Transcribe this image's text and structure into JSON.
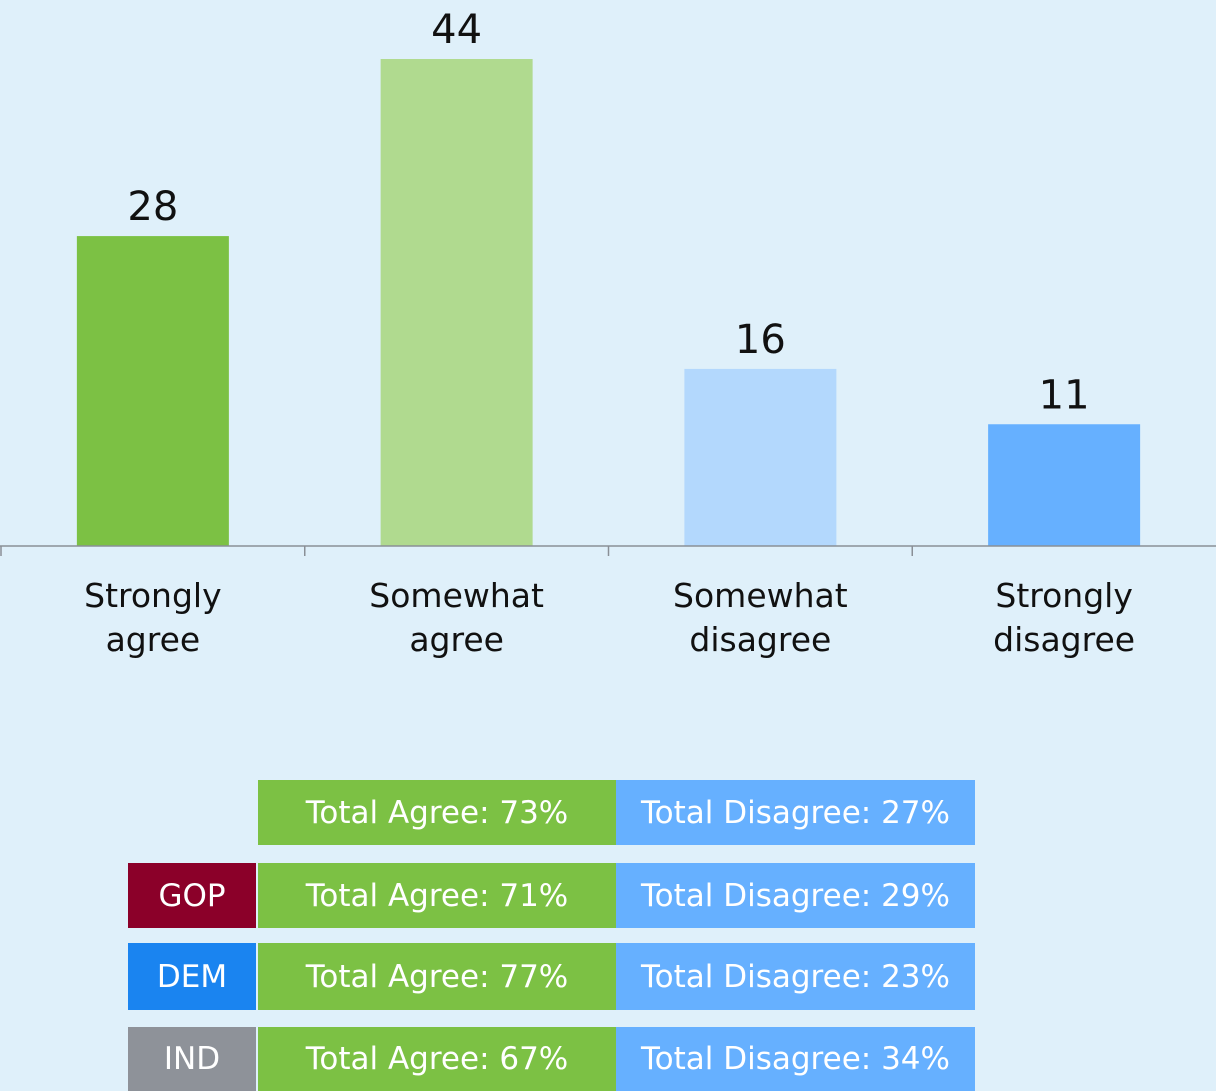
{
  "chart_data": {
    "type": "bar",
    "categories": [
      "Strongly agree",
      "Somewhat agree",
      "Somewhat disagree",
      "Strongly disagree"
    ],
    "values": [
      28,
      44,
      16,
      11
    ],
    "colors": [
      "#7cc144",
      "#b0da8f",
      "#b3d8fd",
      "#66b0ff"
    ],
    "ylim": [
      0,
      44
    ]
  },
  "summary": {
    "rows": [
      {
        "agree": "Total Agree: 73%",
        "disagree": "Total Disagree: 27%"
      },
      {
        "group": "GOP",
        "group_color": "#8b0029",
        "agree": "Total Agree: 71%",
        "disagree": "Total Disagree: 29%"
      },
      {
        "group": "DEM",
        "group_color": "#1a84f0",
        "agree": "Total Agree: 77%",
        "disagree": "Total Disagree: 23%"
      },
      {
        "group": "IND",
        "group_color": "#8e9299",
        "agree": "Total Agree: 67%",
        "disagree": "Total Disagree: 34%"
      }
    ]
  }
}
